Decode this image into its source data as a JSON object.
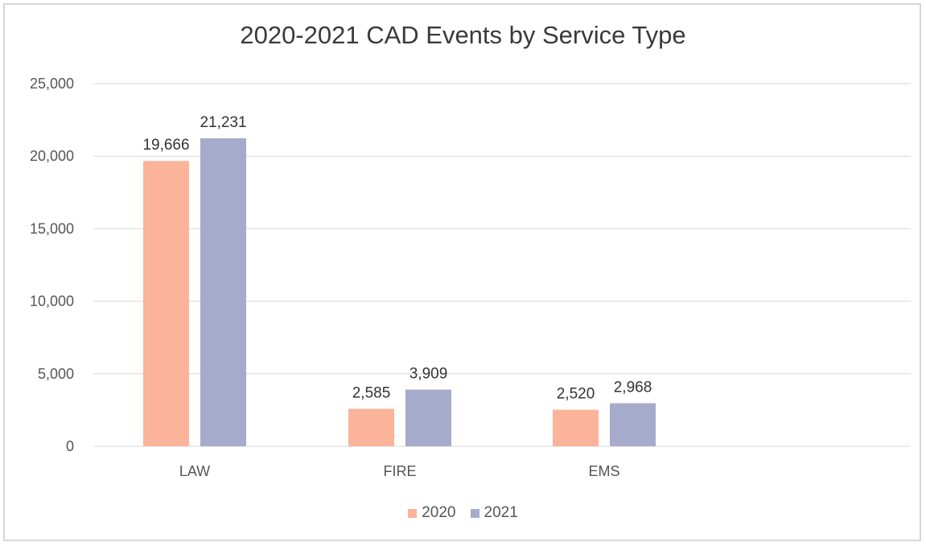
{
  "chart_data": {
    "type": "bar",
    "title": "2020-2021 CAD Events by Service Type",
    "categories": [
      "LAW",
      "FIRE",
      "EMS"
    ],
    "series": [
      {
        "name": "2020",
        "values": [
          19666,
          2585,
          2520
        ],
        "labels": [
          "19,666",
          "2,585",
          "2,520"
        ],
        "color": "#fbb39a"
      },
      {
        "name": "2021",
        "values": [
          21231,
          3909,
          2968
        ],
        "labels": [
          "21,231",
          "3,909",
          "2,968"
        ],
        "color": "#a6abcc"
      }
    ],
    "ylim": [
      0,
      25000
    ],
    "yticks": [
      0,
      5000,
      10000,
      15000,
      20000,
      25000
    ],
    "ytick_labels": [
      "0",
      "5,000",
      "10,000",
      "15,000",
      "20,000",
      "25,000"
    ],
    "xlabel": "",
    "ylabel": "",
    "grid": true,
    "legend_position": "bottom"
  }
}
